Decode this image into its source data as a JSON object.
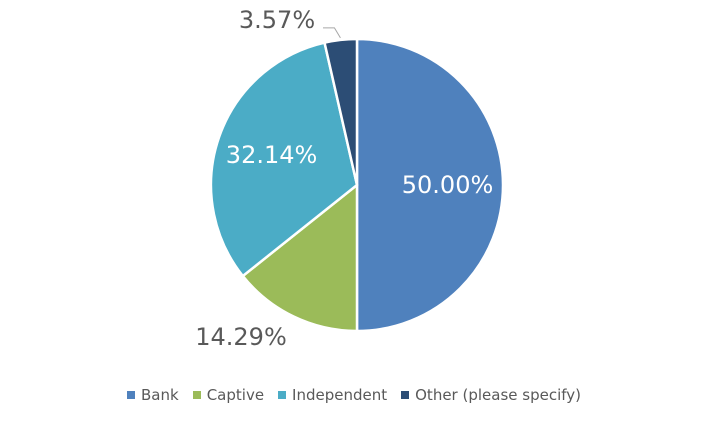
{
  "chart_data": {
    "type": "pie",
    "title": "",
    "categories": [
      "Bank",
      "Captive",
      "Independent",
      "Other (please specify)"
    ],
    "values": [
      50.0,
      14.29,
      32.14,
      3.57
    ],
    "data_labels": [
      "50.00%",
      "14.29%",
      "32.14%",
      "3.57%"
    ],
    "colors": [
      "#4f81bd",
      "#9bbb59",
      "#4bacc6",
      "#2c4d75"
    ],
    "start_angle_deg": 0,
    "direction": "clockwise",
    "legend_position": "bottom"
  }
}
